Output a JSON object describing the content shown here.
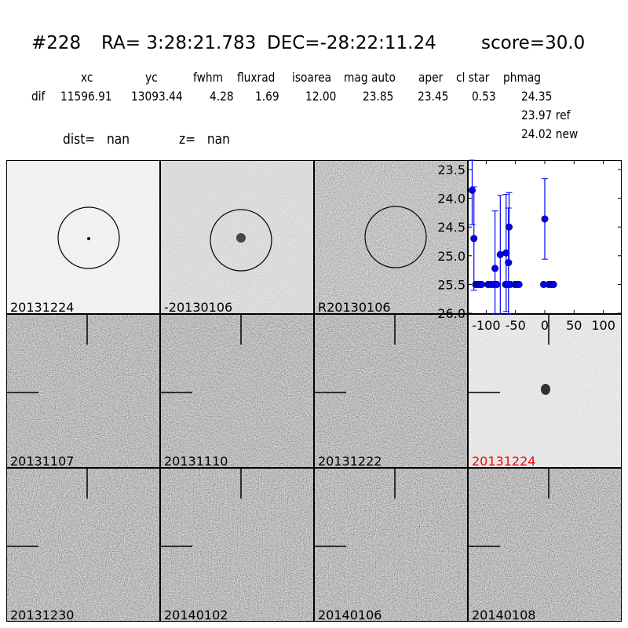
{
  "header": {
    "id": "#228",
    "ra": "RA= 3:28:21.783",
    "dec": "DEC=-28:22:11.24",
    "score": "score=30.0",
    "columns": [
      "xc",
      "yc",
      "fwhm",
      "fluxrad",
      "isoarea",
      "mag auto",
      "aper",
      "cl star",
      "phmag"
    ],
    "row_label": "dif",
    "values": [
      "11596.91",
      "13093.44",
      "4.28",
      "1.69",
      "12.00",
      "23.85",
      "23.45",
      "0.53",
      "24.35"
    ],
    "ref": "23.97 ref",
    "new": "24.02 new",
    "dist": "dist=   nan",
    "z": "z=   nan"
  },
  "stamps": [
    {
      "label": "20131224",
      "kind": "new"
    },
    {
      "label": "-20130106",
      "kind": "diff"
    },
    {
      "label": "R20130106",
      "kind": "ref"
    },
    {
      "label": "20131107",
      "kind": "epoch"
    },
    {
      "label": "20131110",
      "kind": "epoch"
    },
    {
      "label": "20131222",
      "kind": "epoch"
    },
    {
      "label": "20131224",
      "kind": "epoch-highlight",
      "color": "#ff0000"
    },
    {
      "label": "20131230",
      "kind": "epoch"
    },
    {
      "label": "20140102",
      "kind": "epoch"
    },
    {
      "label": "20140106",
      "kind": "epoch"
    },
    {
      "label": "20140108",
      "kind": "epoch"
    }
  ],
  "chart_data": {
    "type": "scatter",
    "xlim": [
      -130,
      130
    ],
    "ylim": [
      26.0,
      23.35
    ],
    "y_inverted": true,
    "xticks": [
      -100,
      -50,
      0,
      50,
      100
    ],
    "yticks": [
      23.5,
      24.0,
      24.5,
      25.0,
      25.5,
      26.0
    ],
    "xtick_labels": [
      "-100",
      "-50",
      "0",
      "50",
      "100"
    ],
    "ytick_labels": [
      "23.5",
      "24.0",
      "24.5",
      "25.0",
      "25.5",
      "26.0"
    ],
    "color": "#0000ff",
    "points": [
      {
        "x": -124,
        "y": 23.86,
        "err": 0.6
      },
      {
        "x": -121,
        "y": 24.7,
        "err": 0.9
      },
      {
        "x": -118,
        "y": 25.5,
        "err": 0
      },
      {
        "x": -115,
        "y": 25.5,
        "err": 0
      },
      {
        "x": -111,
        "y": 25.5,
        "err": 0
      },
      {
        "x": -108,
        "y": 25.5,
        "err": 0
      },
      {
        "x": -97,
        "y": 25.5,
        "err": 0
      },
      {
        "x": -92,
        "y": 25.5,
        "err": 0
      },
      {
        "x": -87,
        "y": 25.5,
        "err": 0
      },
      {
        "x": -82,
        "y": 25.5,
        "err": 0
      },
      {
        "x": -85,
        "y": 25.22,
        "err": 1.0
      },
      {
        "x": -76,
        "y": 24.98,
        "err": 1.03
      },
      {
        "x": -67,
        "y": 25.5,
        "err": 0
      },
      {
        "x": -63,
        "y": 25.5,
        "err": 0
      },
      {
        "x": -59,
        "y": 25.5,
        "err": 0
      },
      {
        "x": -66,
        "y": 24.95,
        "err": 1.02
      },
      {
        "x": -62,
        "y": 25.12,
        "err": 0.95
      },
      {
        "x": -61,
        "y": 24.5,
        "err": 0.6
      },
      {
        "x": -51,
        "y": 25.5,
        "err": 0
      },
      {
        "x": -47,
        "y": 25.5,
        "err": 0
      },
      {
        "x": -44,
        "y": 25.5,
        "err": 0
      },
      {
        "x": 0,
        "y": 24.36,
        "err": 0.7
      },
      {
        "x": -2,
        "y": 25.5,
        "err": 0
      },
      {
        "x": 7,
        "y": 25.5,
        "err": 0
      },
      {
        "x": 11,
        "y": 25.5,
        "err": 0
      },
      {
        "x": 15,
        "y": 25.5,
        "err": 0
      }
    ]
  }
}
